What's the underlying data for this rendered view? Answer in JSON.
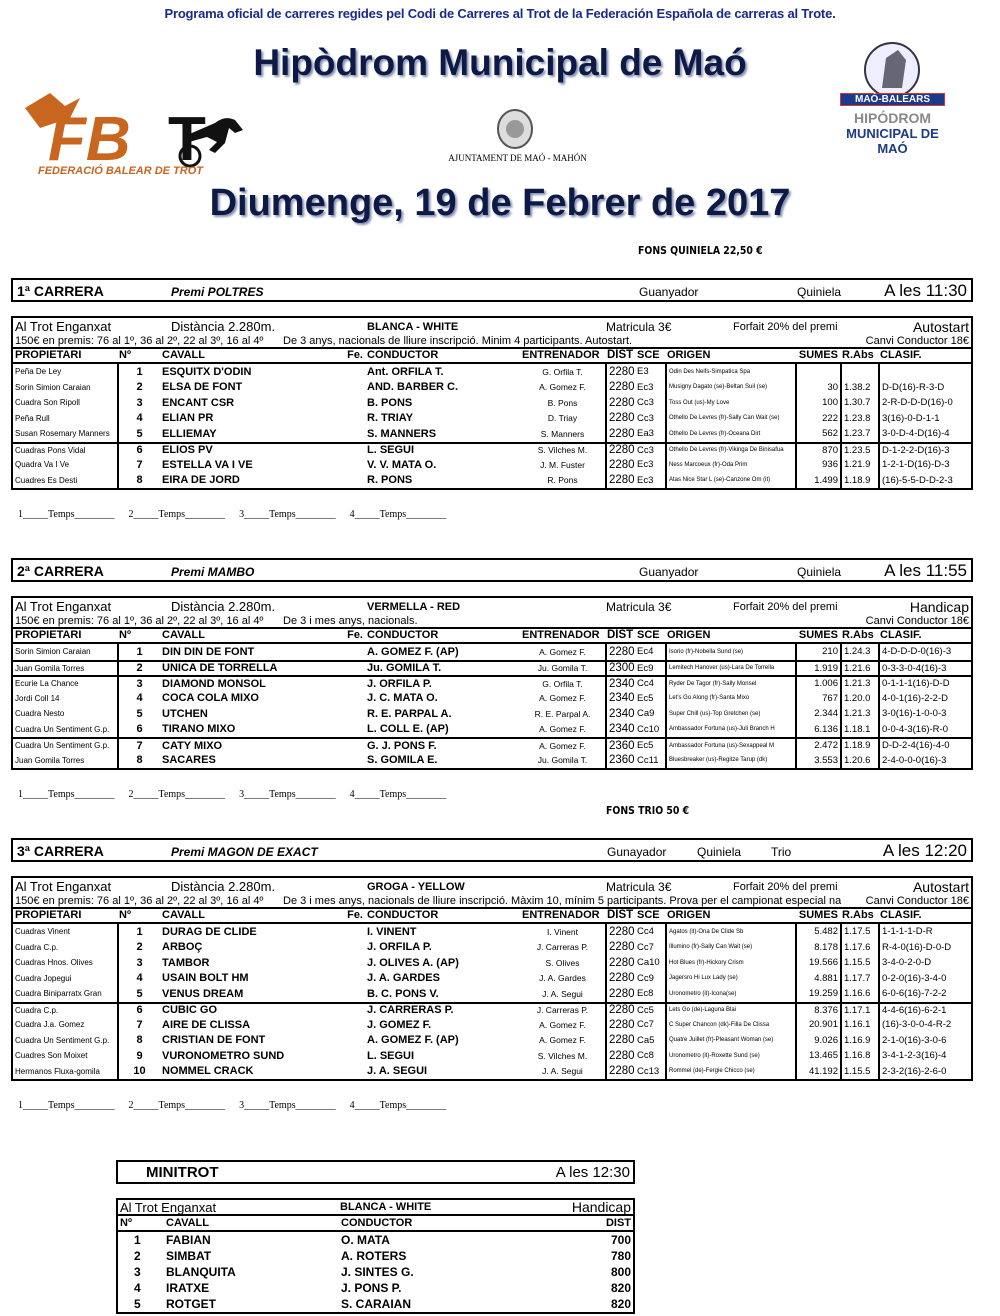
{
  "header": {
    "subtitle": "Programa oficial de carreres regides pel Codi de Carreres al Trot de la Federación Española de carreras al Trote.",
    "title": "Hipòdrom Municipal de Maó",
    "date": "Diumenge, 19 de Febrer de 2017",
    "fons_quiniela": "FONS QUINIELA 22,50 €",
    "fons_trio": "FONS TRIO 50 €",
    "logos": {
      "fbt": "FBT",
      "fbt_sub": "FEDERACIÓ BALEAR DE TROT",
      "ajuntament": "AJUNTAMENT DE MAÓ - MAHÓN",
      "hipodrom_ribbon": "MAÓ-BALEARS",
      "hipodrom_l1": "HIPÓDROM",
      "hipodrom_l2": "MUNICIPAL DE MAÓ"
    }
  },
  "columns": [
    "PROPIETARI",
    "Nº",
    "CAVALL",
    "Fe.",
    "CONDUCTOR",
    "ENTRENADOR",
    "DIST",
    "SCE",
    "ORIGEN",
    "SUMES",
    "R.Abs",
    "CLASIF."
  ],
  "temps": [
    "1_____Temps________",
    "2_____Temps________",
    "3_____Temps________",
    "4_____Temps________"
  ],
  "races": [
    {
      "number": "1ª CARRERA",
      "premi": "Premi POLTRES",
      "bets": [
        "Guanyador",
        "Quiniela"
      ],
      "time": "A les 11:30",
      "type": "Al Trot Enganxat",
      "distance": "Distància 2.280m.",
      "color": "BLANCA - WHITE",
      "matricula": "Matricula 3€",
      "forfait": "Forfait 20% del premi",
      "start": "Autostart",
      "prizes": "150€ en premis: 76 al 1º, 36 al 2º, 22 al 3º, 16 al 4º",
      "conditions": "De 3 anys, nacionals de lliure inscripció. Minim 4 participants. Autostart.",
      "canvi": "Canvi Conductor 18€",
      "entries": [
        [
          "Peña De Ley",
          "1",
          "ESQUITX D'ODIN",
          "",
          "Ant. ORFILA T.",
          "G. Orfila T.",
          "2280",
          "E3",
          "Odin Des Neifs-Simpatica Spa",
          "",
          "",
          ""
        ],
        [
          "Sorin Simion Caraian",
          "2",
          "ELSA DE FONT",
          "",
          "AND. BARBER C.",
          "A. Gomez F.",
          "2280",
          "Ec3",
          "Musigny Dagato (se)-Beltan Suil (se)",
          "30",
          "1.38.2",
          "D-D(16)-R-3-D"
        ],
        [
          "Cuadra Son Ripoll",
          "3",
          "ENCANT CSR",
          "",
          "B. PONS",
          "B. Pons",
          "2280",
          "Cc3",
          "Toss Out (us)-My Love",
          "100",
          "1.30.7",
          "2-R-D-D-D(16)-0"
        ],
        [
          "Peña Rull",
          "4",
          "ELIAN PR",
          "",
          "R. TRIAY",
          "D. Triay",
          "2280",
          "Cc3",
          "Othello De Levres (fr)-Sally Can Wait (se)",
          "222",
          "1.23.8",
          "3(16)-0-D-1-1"
        ],
        [
          "Susan Rosemary Manners",
          "5",
          "ELLIEMAY",
          "",
          "S. MANNERS",
          "S. Manners",
          "2280",
          "Ea3",
          "Othello De Levres (fr)-Oceana Dirt",
          "562",
          "1.23.7",
          "3-0-D-4-D(16)-4"
        ],
        [
          "Cuadras Pons Vidal",
          "6",
          "ELIOS PV",
          "",
          "L. SEGUI",
          "S. Vilches M.",
          "2280",
          "Cc3",
          "Othello De Levres (fr)-Vikinga De Binisafua",
          "870",
          "1.23.5",
          "D-1-2-2-D(16)-3"
        ],
        [
          "Quadra Va I Ve",
          "7",
          "ESTELLA VA I VE",
          "",
          "V. V. MATA O.",
          "J. M. Fuster",
          "2280",
          "Ec3",
          "Ness Marcoeux (fr)-Oda Prim",
          "936",
          "1.21.9",
          "1-2-1-D(16)-D-3"
        ],
        [
          "Cuadres Es Desti",
          "8",
          "EIRA DE JORD",
          "",
          "R. PONS",
          "R. Pons",
          "2280",
          "Ec3",
          "Atas Nice Star L (se)-Canzone Om (it)",
          "1.499",
          "1.18.9",
          "(16)-5-5-D-D-2-3"
        ]
      ],
      "seps": [
        5
      ]
    },
    {
      "number": "2ª CARRERA",
      "premi": "Premi MAMBO",
      "bets": [
        "Guanyador",
        "Quiniela"
      ],
      "time": "A les 11:55",
      "type": "Al Trot Enganxat",
      "distance": "Distància 2.280m.",
      "color": "VERMELLA - RED",
      "matricula": "Matricula 3€",
      "forfait": "Forfait 20% del premi",
      "start": "Handicap",
      "prizes": "150€ en premis: 76 al 1º, 36 al 2º, 22 al 3º, 16 al 4º",
      "conditions": "De 3 i mes anys, nacionals.",
      "canvi": "Canvi Conductor 18€",
      "entries": [
        [
          "Sorin Simion Caraian",
          "1",
          "DIN DIN DE FONT",
          "",
          "A. GOMEZ F.  (AP)",
          "A. Gomez F.",
          "2280",
          "Ec4",
          "Isorio (fr)-Nobella Sund (se)",
          "210",
          "1.24.3",
          "4-D-D-D-0(16)-3"
        ],
        [
          "Juan Gomila Torres",
          "2",
          "UNICA DE TORRELLA",
          "",
          "Ju. GOMILA T.",
          "Ju. Gomila T.",
          "2300",
          "Ec9",
          "Lemitech Hanover (us)-Lara De Torrella",
          "1.919",
          "1.21.6",
          "0-3-3-0-4(16)-3"
        ],
        [
          "Ecurie La Chance",
          "3",
          "DIAMOND MONSOL",
          "",
          "J. ORFILA P.",
          "G. Orfila T.",
          "2340",
          "Cc4",
          "Ryder De Tagor (fr)-Sally Monsel",
          "1.006",
          "1.21.3",
          "0-1-1-1(16)-D-D"
        ],
        [
          "Jordi Coll 14",
          "4",
          "COCA COLA MIXO",
          "",
          "J. C. MATA O.",
          "A. Gomez F.",
          "2340",
          "Ec5",
          "Let's Go Along (fr)-Santa Mixo",
          "767",
          "1.20.0",
          "4-0-1(16)-2-2-D"
        ],
        [
          "Cuadra Nesto",
          "5",
          "UTCHEN",
          "",
          "R. E. PARPAL A.",
          "R. E. Parpal A.",
          "2340",
          "Ca9",
          "Super Chill (us)-Top Gretchen (se)",
          "2.344",
          "1.21.3",
          "3-0(16)-1-0-0-3"
        ],
        [
          "Cuadra Un Sentiment G.p.",
          "6",
          "TIRANO MIXO",
          "",
          "L. COLL E.  (AP)",
          "A. Gomez F.",
          "2340",
          "Cc10",
          "Ambassador Fortuna (us)-Juli Branch H",
          "6.136",
          "1.18.1",
          "0-0-4-3(16)-R-0"
        ],
        [
          "Cuadra Un Sentiment G.p.",
          "7",
          "CATY MIXO",
          "",
          "G. J. PONS F.",
          "A. Gomez F.",
          "2360",
          "Ec5",
          "Ambassador Fortuna (us)-Sexappeal M",
          "2.472",
          "1.18.9",
          "D-D-2-4(16)-4-0"
        ],
        [
          "Juan Gomila Torres",
          "8",
          "SACARES",
          "",
          "S. GOMILA E.",
          "Ju. Gomila T.",
          "2360",
          "Cc11",
          "Bluesbreaker (us)-Regitze Tarup (dk)",
          "3.553",
          "1.20.6",
          "2-4-0-0-0(16)-3"
        ]
      ],
      "seps": [
        1,
        2,
        6
      ]
    },
    {
      "number": "3ª CARRERA",
      "premi": "Premi MAGON DE  EXACT",
      "bets": [
        "Gunayador",
        "Quiniela",
        "Trio"
      ],
      "time": "A les 12:20",
      "type": "Al Trot Enganxat",
      "distance": "Distància 2.280m.",
      "color": "GROGA - YELLOW",
      "matricula": "Matricula 3€",
      "forfait": "Forfait 20% del premi",
      "start": "Autostart",
      "prizes": "150€ en premis: 76 al 1º, 36 al 2º, 22 al 3º, 16 al 4º",
      "conditions": "De 3 i mes anys, nacionals de lliure inscripció. Màxim 10, mínim 5 participants. Prova per el campionat especial na",
      "canvi": "Canvi Conductor 18€",
      "entries": [
        [
          "Cuadras Vinent",
          "1",
          "DURAG DE CLIDE",
          "",
          "I. VINENT",
          "I. Vinent",
          "2280",
          "Cc4",
          "Agatos (it)-Ona De Clide Sb",
          "5.482",
          "1.17.5",
          "1-1-1-1-D-R"
        ],
        [
          "Cuadra C.p.",
          "2",
          "ARBOÇ",
          "",
          "J. ORFILA P.",
          "J. Carreras P.",
          "2280",
          "Cc7",
          "Illumino (fr)-Sally Can Wait (se)",
          "8.178",
          "1.17.6",
          "R-4-0(16)-D-0-D"
        ],
        [
          "Cuadras Hnos. Olives",
          "3",
          "TAMBOR",
          "",
          "J. OLIVES A.  (AP)",
          "S. Olives",
          "2280",
          "Ca10",
          "Hot Blues (fr)-Hickory Crism",
          "19.566",
          "1.15.5",
          "3-4-0-2-0-D"
        ],
        [
          "Cuadra Jopegui",
          "4",
          "USAIN BOLT HM",
          "",
          "J. A. GARDES",
          "J. A. Gardes",
          "2280",
          "Cc9",
          "Jagersro Hi Lux Lady (se)",
          "4.881",
          "1.17.7",
          "0-2-0(16)-3-4-0"
        ],
        [
          "Cuadra Biniparratx Gran",
          "5",
          "VENUS DREAM",
          "",
          "B. C. PONS V.",
          "J. A. Segui",
          "2280",
          "Ec8",
          "Uronometro (it)-Icona(se)",
          "19.259",
          "1.16.6",
          "6-0-6(16)-7-2-2"
        ],
        [
          "Cuadra C.p.",
          "6",
          "CUBIC GO",
          "",
          "J. CARRERAS P.",
          "J. Carreras P.",
          "2280",
          "Cc5",
          "Lets Go (de)-Laguna Blai",
          "8.376",
          "1.17.1",
          "4-4-6(16)-6-2-1"
        ],
        [
          "Cuadra J.a. Gomez",
          "7",
          "AIRE DE CLISSA",
          "",
          "J. GOMEZ F.",
          "A. Gomez F.",
          "2280",
          "Cc7",
          "C Super Chancon (dk)-Filla De Clissa",
          "20.901",
          "1.16.1",
          "(16)-3-0-0-4-R-2"
        ],
        [
          "Cuadra Un Sentiment G.p.",
          "8",
          "CRISTIAN DE FONT",
          "",
          "A. GOMEZ F.  (AP)",
          "A. Gomez F.",
          "2280",
          "Ca5",
          "Quatre Juillet (fr)-Pleasant Woman (se)",
          "9.026",
          "1.16.9",
          "2-1-0(16)-3-0-6"
        ],
        [
          "Cuadres Son Moixet",
          "9",
          "VURONOMETRO SUND",
          "",
          "L. SEGUI",
          "S. Vilches M.",
          "2280",
          "Cc8",
          "Uronometro (it)-Roxette Sund (se)",
          "13.465",
          "1.16.8",
          "3-4-1-2-3(16)-4"
        ],
        [
          "Hermanos Fluxa-gomila",
          "10",
          "NOMMEL CRACK",
          "",
          "J. A. SEGUI",
          "J. A. Segui",
          "2280",
          "Cc13",
          "Rommel (de)-Fergie Chicco (se)",
          "41.192",
          "1.15.5",
          "2-3-2(16)-2-6-0"
        ]
      ],
      "seps": [
        5
      ]
    }
  ],
  "minitrot": {
    "title": "MINITROT",
    "time": "A les 12:30",
    "type": "Al Trot Enganxat",
    "color": "BLANCA - WHITE",
    "start": "Handicap",
    "columns": [
      "Nº",
      "CAVALL",
      "CONDUCTOR",
      "DIST"
    ],
    "entries": [
      [
        "1",
        "FABIAN",
        "O. MATA",
        "700"
      ],
      [
        "2",
        "SIMBAT",
        "A. ROTERS",
        "780"
      ],
      [
        "3",
        "BLANQUITA",
        "J. SINTES G.",
        "800"
      ],
      [
        "4",
        "IRATXE",
        "J. PONS P.",
        "820"
      ],
      [
        "5",
        "ROTGET",
        "S. CARAIAN",
        "820"
      ]
    ]
  }
}
